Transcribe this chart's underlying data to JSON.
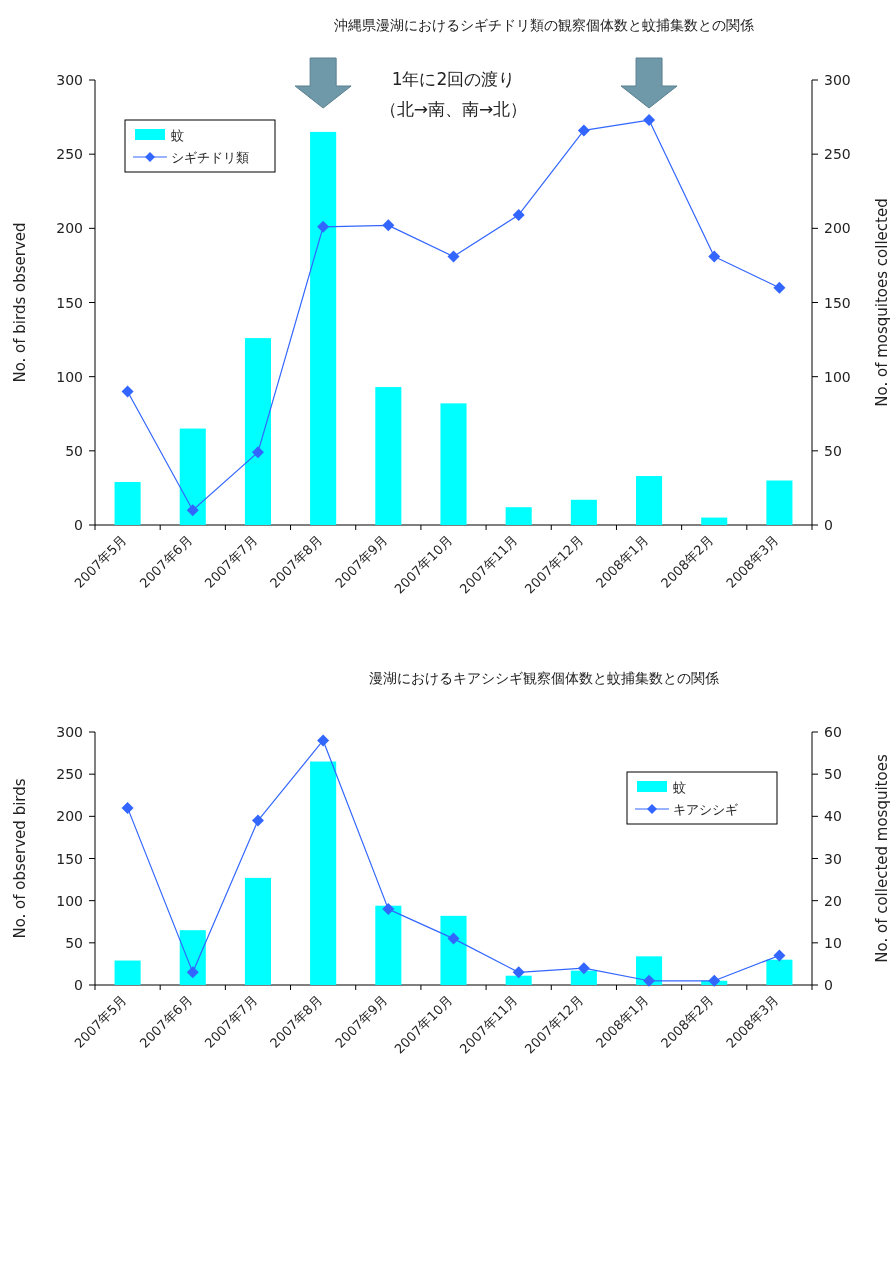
{
  "chart_data": [
    {
      "type": "bar",
      "title": "沖縄県漫湖におけるシギチドリ類の観察個体数と蚊捕集数との関係",
      "ylabel": "No. of birds observed",
      "y2label": "No. of mosquitoes collected",
      "categories": [
        "2007年5月",
        "2007年6月",
        "2007年7月",
        "2007年8月",
        "2007年9月",
        "2007年10月",
        "2007年11月",
        "2007年12月",
        "2008年1月",
        "2008年2月",
        "2008年3月"
      ],
      "series": [
        {
          "name": "蚊",
          "color": "#00ffff",
          "values": [
            29,
            65,
            126,
            265,
            93,
            82,
            12,
            17,
            33,
            5,
            30
          ]
        },
        {
          "name": "シギチドリ類",
          "type": "line",
          "axis": "y2",
          "color": "#3366ff",
          "values": [
            90,
            10,
            49,
            201,
            202,
            181,
            209,
            266,
            273,
            181,
            160
          ]
        }
      ],
      "ylim": [
        0,
        300
      ],
      "yticks": [
        0,
        50,
        100,
        150,
        200,
        250,
        300
      ],
      "y2lim": [
        0,
        300
      ],
      "y2ticks": [
        0,
        50,
        100,
        150,
        200,
        250,
        300
      ],
      "annotations": [
        "1年に2回の渡り",
        "（北→南、南→北）"
      ],
      "legend": "top left",
      "marker": "diamond",
      "grid": false
    },
    {
      "type": "bar",
      "title": "漫湖におけるキアシシギ観察個体数と蚊捕集数との関係",
      "ylabel": "No. of observed birds",
      "y2label": "No. of collected mosquitoes",
      "categories": [
        "2007年5月",
        "2007年6月",
        "2007年7月",
        "2007年8月",
        "2007年9月",
        "2007年10月",
        "2007年11月",
        "2007年12月",
        "2008年1月",
        "2008年2月",
        "2008年3月"
      ],
      "series": [
        {
          "name": "蚊",
          "color": "#00ffff",
          "values": [
            29,
            65,
            127,
            265,
            94,
            82,
            11,
            17,
            34,
            5,
            30
          ]
        },
        {
          "name": "キアシシギ",
          "type": "line",
          "axis": "y2",
          "color": "#3366ff",
          "values": [
            42,
            3,
            39,
            58,
            18,
            11,
            3,
            4,
            1,
            1,
            7
          ]
        }
      ],
      "ylim": [
        0,
        300
      ],
      "yticks": [
        0,
        50,
        100,
        150,
        200,
        250,
        300
      ],
      "y2lim": [
        0,
        60
      ],
      "y2ticks": [
        0,
        10,
        20,
        30,
        40,
        50,
        60
      ],
      "legend": "top right",
      "marker": "diamond",
      "grid": false
    }
  ]
}
